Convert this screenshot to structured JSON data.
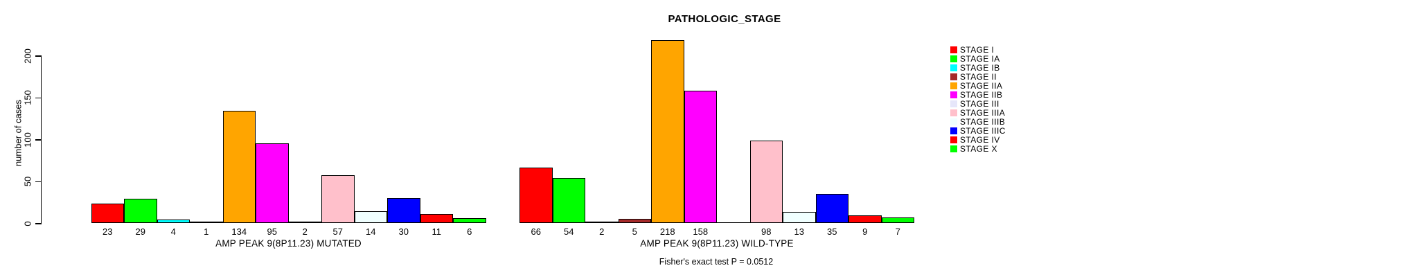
{
  "chart_data": {
    "type": "bar",
    "title": "PATHOLOGIC_STAGE",
    "ylabel": "number of cases",
    "ylim": [
      0,
      200
    ],
    "yticks": [
      0,
      50,
      100,
      150,
      200
    ],
    "grid": false,
    "legend_position": "right",
    "categories": [
      "STAGE I",
      "STAGE IA",
      "STAGE IB",
      "STAGE II",
      "STAGE IIA",
      "STAGE IIB",
      "STAGE III",
      "STAGE IIIA",
      "STAGE IIIB",
      "STAGE IIIC",
      "STAGE IV",
      "STAGE X"
    ],
    "colors": [
      "#FF0000",
      "#00FF00",
      "#00FFFF",
      "#A52A2A",
      "#FFA500",
      "#FF00FF",
      "#E6E6FA",
      "#FFC0CB",
      "#F0FFFF",
      "#0000FF",
      "#FF0000",
      "#00FF00"
    ],
    "series": [
      {
        "name": "AMP PEAK 9(8P11.23) MUTATED",
        "values": [
          23,
          29,
          4,
          1,
          134,
          95,
          2,
          57,
          14,
          30,
          11,
          6
        ],
        "bar_labels": [
          "23",
          "29",
          "4",
          "1",
          "134",
          "95",
          "2",
          "57",
          "14",
          "30",
          "11",
          "6"
        ]
      },
      {
        "name": "AMP PEAK 9(8P11.23) WILD-TYPE",
        "values": [
          66,
          54,
          2,
          5,
          218,
          158,
          0,
          98,
          13,
          35,
          9,
          7
        ],
        "bar_labels": [
          "66",
          "54",
          "2",
          "5",
          "218",
          "158",
          "",
          "98",
          "13",
          "35",
          "9",
          "7"
        ]
      }
    ],
    "annotation": "Fisher's exact test P = 0.0512",
    "legend": {
      "entries": [
        {
          "label": "STAGE I",
          "color": "#FF0000"
        },
        {
          "label": "STAGE IA",
          "color": "#00FF00"
        },
        {
          "label": "STAGE IB",
          "color": "#00FFFF"
        },
        {
          "label": "STAGE II",
          "color": "#A52A2A"
        },
        {
          "label": "STAGE IIA",
          "color": "#FFA500"
        },
        {
          "label": "STAGE IIB",
          "color": "#FF00FF"
        },
        {
          "label": "STAGE III",
          "color": "#E6E6FA"
        },
        {
          "label": "STAGE IIIA",
          "color": "#FFC0CB"
        },
        {
          "label": "STAGE IIIB",
          "color": "#F0FFFF"
        },
        {
          "label": "STAGE IIIC",
          "color": "#0000FF"
        },
        {
          "label": "STAGE IV",
          "color": "#FF0000"
        },
        {
          "label": "STAGE X",
          "color": "#00FF00"
        }
      ]
    }
  }
}
